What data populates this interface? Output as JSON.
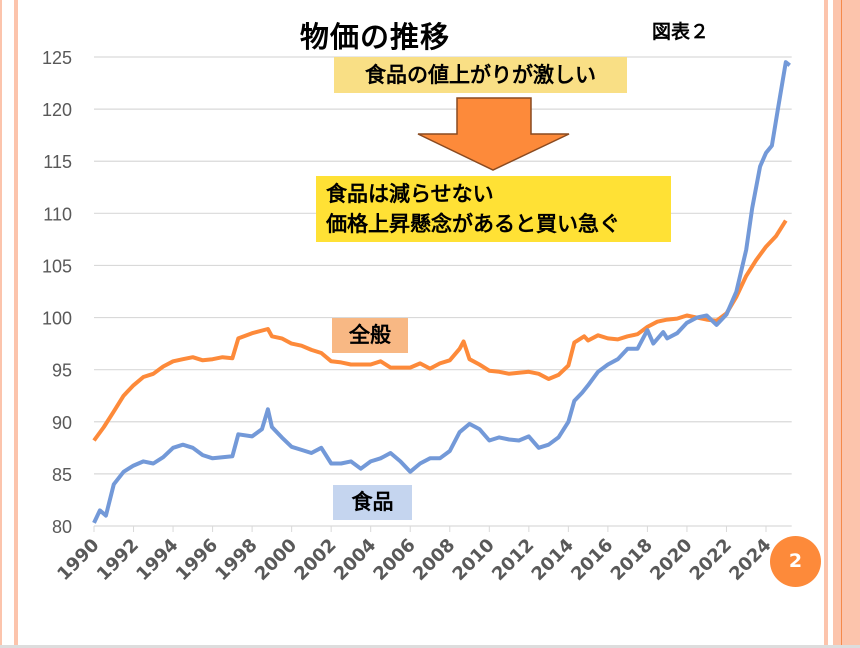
{
  "slide": {
    "title": "物価の推移",
    "figure_label": "図表２",
    "callout_top": "食品の値上がりが激しい",
    "callout_bottom_line1": "食品は減らせない",
    "callout_bottom_line2": "価格上昇懸念があると買い急ぐ",
    "page_number": "2",
    "colors": {
      "general": "#fd8a3a",
      "food": "#7399d8",
      "callout_top_bg": "#f9df85",
      "callout_bottom_bg": "#ffe135",
      "arrow": "#fd8a3a"
    }
  },
  "chart_data": {
    "type": "line",
    "title": "物価の推移",
    "xlabel": "",
    "ylabel": "",
    "xlim": [
      1990,
      2025.3
    ],
    "ylim": [
      80,
      125
    ],
    "yticks": [
      "80",
      "85",
      "90",
      "95",
      "100",
      "105",
      "110",
      "115",
      "120",
      "125"
    ],
    "xticks": [
      "1990",
      "1992",
      "1994",
      "1996",
      "1998",
      "2000",
      "2002",
      "2004",
      "2006",
      "2008",
      "2010",
      "2012",
      "2014",
      "2016",
      "2018",
      "2020",
      "2022",
      "2024"
    ],
    "grid": true,
    "series": [
      {
        "name": "全般",
        "color": "#fd8a3a",
        "points": [
          [
            1990,
            88.2
          ],
          [
            1990.5,
            89.5
          ],
          [
            1991,
            91
          ],
          [
            1991.5,
            92.5
          ],
          [
            1992,
            93.5
          ],
          [
            1992.5,
            94.3
          ],
          [
            1993,
            94.6
          ],
          [
            1993.5,
            95.3
          ],
          [
            1994,
            95.8
          ],
          [
            1994.5,
            96.0
          ],
          [
            1995,
            96.2
          ],
          [
            1995.5,
            95.9
          ],
          [
            1996,
            96.0
          ],
          [
            1996.5,
            96.2
          ],
          [
            1997,
            96.1
          ],
          [
            1997.3,
            98.0
          ],
          [
            1998,
            98.5
          ],
          [
            1998.8,
            98.9
          ],
          [
            1999,
            98.2
          ],
          [
            1999.5,
            98.0
          ],
          [
            2000,
            97.5
          ],
          [
            2000.5,
            97.3
          ],
          [
            2001,
            96.9
          ],
          [
            2001.5,
            96.6
          ],
          [
            2002,
            95.8
          ],
          [
            2002.5,
            95.7
          ],
          [
            2003,
            95.5
          ],
          [
            2004,
            95.5
          ],
          [
            2004.5,
            95.8
          ],
          [
            2005,
            95.2
          ],
          [
            2006,
            95.2
          ],
          [
            2006.5,
            95.6
          ],
          [
            2007,
            95.1
          ],
          [
            2007.5,
            95.6
          ],
          [
            2008,
            95.9
          ],
          [
            2008.5,
            97.0
          ],
          [
            2008.7,
            97.7
          ],
          [
            2009,
            96.0
          ],
          [
            2009.5,
            95.5
          ],
          [
            2010,
            94.9
          ],
          [
            2010.5,
            94.8
          ],
          [
            2011,
            94.6
          ],
          [
            2011.5,
            94.7
          ],
          [
            2012,
            94.8
          ],
          [
            2012.5,
            94.6
          ],
          [
            2013,
            94.1
          ],
          [
            2013.5,
            94.5
          ],
          [
            2014,
            95.4
          ],
          [
            2014.3,
            97.6
          ],
          [
            2014.8,
            98.2
          ],
          [
            2015,
            97.8
          ],
          [
            2015.5,
            98.3
          ],
          [
            2016,
            98.0
          ],
          [
            2016.5,
            97.9
          ],
          [
            2017,
            98.2
          ],
          [
            2017.5,
            98.4
          ],
          [
            2018,
            99.1
          ],
          [
            2018.5,
            99.6
          ],
          [
            2019,
            99.8
          ],
          [
            2019.5,
            99.9
          ],
          [
            2020,
            100.2
          ],
          [
            2020.5,
            100.0
          ],
          [
            2021,
            99.8
          ],
          [
            2021.5,
            99.7
          ],
          [
            2022,
            100.4
          ],
          [
            2022.5,
            102.0
          ],
          [
            2023,
            104.0
          ],
          [
            2023.5,
            105.5
          ],
          [
            2024,
            106.8
          ],
          [
            2024.5,
            107.8
          ],
          [
            2025,
            109.3
          ]
        ]
      },
      {
        "name": "食品",
        "color": "#7399d8",
        "points": [
          [
            1990,
            80.3
          ],
          [
            1990.3,
            81.5
          ],
          [
            1990.6,
            81.0
          ],
          [
            1991,
            84.0
          ],
          [
            1991.5,
            85.2
          ],
          [
            1992,
            85.8
          ],
          [
            1992.5,
            86.2
          ],
          [
            1993,
            86.0
          ],
          [
            1993.5,
            86.6
          ],
          [
            1994,
            87.5
          ],
          [
            1994.5,
            87.8
          ],
          [
            1995,
            87.5
          ],
          [
            1995.5,
            86.8
          ],
          [
            1996,
            86.5
          ],
          [
            1996.5,
            86.6
          ],
          [
            1997,
            86.7
          ],
          [
            1997.3,
            88.8
          ],
          [
            1998,
            88.6
          ],
          [
            1998.5,
            89.3
          ],
          [
            1998.8,
            91.2
          ],
          [
            1999,
            89.5
          ],
          [
            1999.5,
            88.5
          ],
          [
            2000,
            87.6
          ],
          [
            2000.5,
            87.3
          ],
          [
            2001,
            87.0
          ],
          [
            2001.5,
            87.5
          ],
          [
            2002,
            86.0
          ],
          [
            2002.5,
            86.0
          ],
          [
            2003,
            86.2
          ],
          [
            2003.5,
            85.5
          ],
          [
            2004,
            86.2
          ],
          [
            2004.5,
            86.5
          ],
          [
            2005,
            87.0
          ],
          [
            2005.5,
            86.2
          ],
          [
            2006,
            85.2
          ],
          [
            2006.5,
            86.0
          ],
          [
            2007,
            86.5
          ],
          [
            2007.5,
            86.5
          ],
          [
            2008,
            87.2
          ],
          [
            2008.5,
            89.0
          ],
          [
            2009,
            89.8
          ],
          [
            2009.5,
            89.3
          ],
          [
            2010,
            88.2
          ],
          [
            2010.5,
            88.5
          ],
          [
            2011,
            88.3
          ],
          [
            2011.5,
            88.2
          ],
          [
            2012,
            88.6
          ],
          [
            2012.5,
            87.5
          ],
          [
            2013,
            87.8
          ],
          [
            2013.5,
            88.5
          ],
          [
            2014,
            90.0
          ],
          [
            2014.3,
            92.0
          ],
          [
            2014.7,
            92.8
          ],
          [
            2015,
            93.5
          ],
          [
            2015.5,
            94.8
          ],
          [
            2016,
            95.5
          ],
          [
            2016.5,
            96.0
          ],
          [
            2017,
            97.0
          ],
          [
            2017.5,
            97.0
          ],
          [
            2018,
            98.8
          ],
          [
            2018.3,
            97.5
          ],
          [
            2018.8,
            98.6
          ],
          [
            2019,
            98.0
          ],
          [
            2019.5,
            98.5
          ],
          [
            2020,
            99.5
          ],
          [
            2020.5,
            100.0
          ],
          [
            2021,
            100.2
          ],
          [
            2021.5,
            99.3
          ],
          [
            2022,
            100.3
          ],
          [
            2022.5,
            102.5
          ],
          [
            2023,
            106.5
          ],
          [
            2023.3,
            110.5
          ],
          [
            2023.7,
            114.5
          ],
          [
            2024,
            115.8
          ],
          [
            2024.3,
            116.5
          ],
          [
            2024.6,
            120.0
          ],
          [
            2025,
            124.5
          ],
          [
            2025.2,
            124.2
          ]
        ]
      }
    ]
  }
}
